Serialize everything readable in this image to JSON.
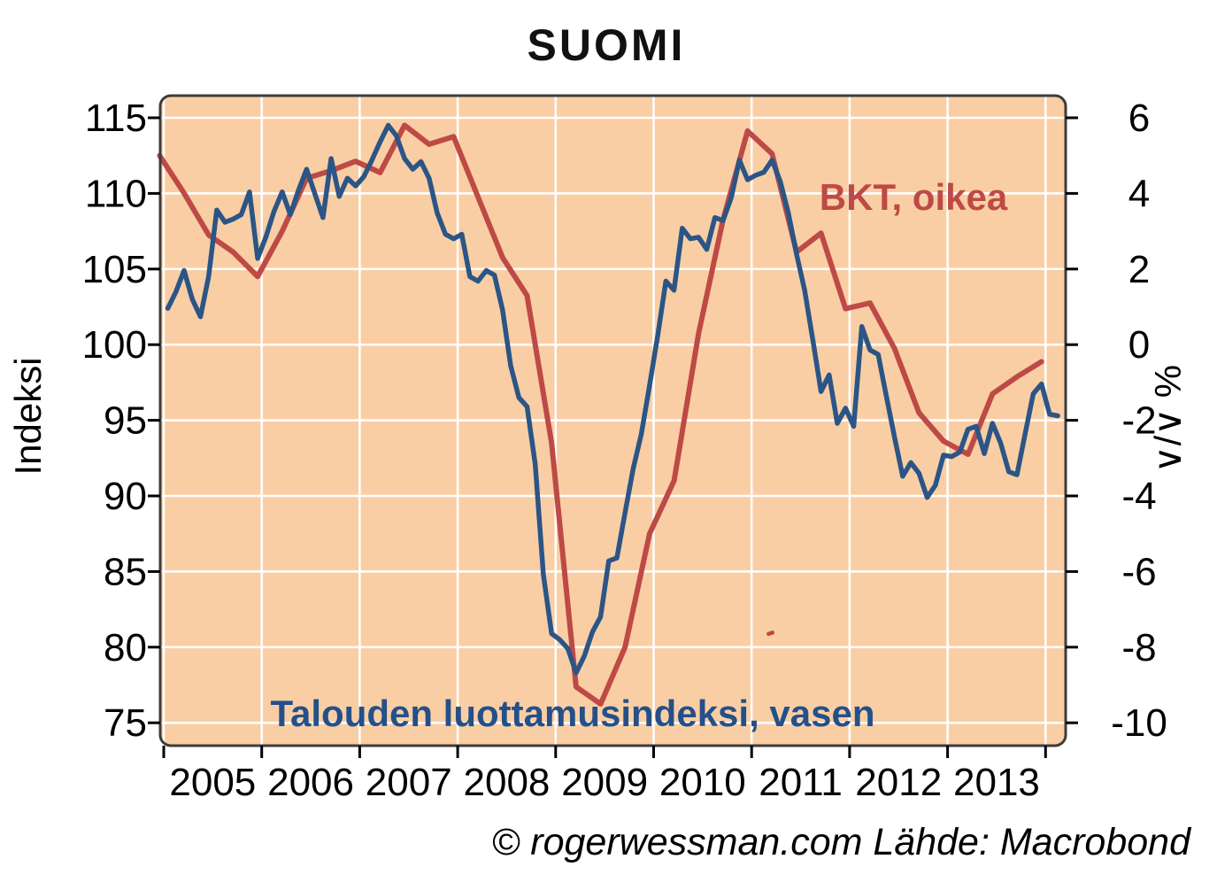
{
  "chart_data": {
    "type": "line",
    "title": "SUOMI",
    "footer": "© rogerwessman.com Lähde: Macrobond",
    "plot_background": "#facea4",
    "grid_color": "#ffffff",
    "border_color": "#3c3c3c",
    "left_axis": {
      "label": "Indeksi",
      "min": 75,
      "max": 115,
      "ticks": [
        115,
        110,
        105,
        100,
        95,
        90,
        85,
        80,
        75
      ]
    },
    "right_axis": {
      "label": "∨/∨ %",
      "min": -10,
      "max": 6,
      "ticks": [
        6,
        4,
        2,
        0,
        -2,
        -4,
        -6,
        -8,
        -10
      ]
    },
    "x_axis": {
      "year_labels": [
        "2005",
        "2006",
        "2007",
        "2008",
        "2009",
        "2010",
        "2011",
        "2012",
        "2013"
      ],
      "gridline_years": 10
    },
    "series": [
      {
        "label": "Talouden luottamusindeksi, vasen",
        "axis": "left",
        "frequency": "monthly",
        "start": "2005-01",
        "color": "#2b5586",
        "label_color": "#24508a",
        "stroke_width": 5.5,
        "values": [
          102.4,
          103.5,
          104.9,
          103.0,
          101.85,
          104.5,
          108.9,
          108.1,
          108.3,
          108.6,
          110.1,
          105.7,
          107.1,
          108.8,
          110.1,
          108.6,
          110.2,
          111.6,
          110.0,
          108.4,
          112.3,
          109.8,
          111.0,
          110.5,
          111.1,
          112.2,
          113.4,
          114.5,
          113.8,
          112.3,
          111.6,
          112.1,
          111.0,
          108.7,
          107.3,
          107.0,
          107.3,
          104.5,
          104.2,
          104.9,
          104.6,
          102.3,
          98.6,
          96.5,
          95.9,
          92.1,
          84.8,
          80.9,
          80.5,
          79.9,
          78.3,
          79.4,
          81.0,
          82.0,
          85.7,
          85.9,
          88.9,
          91.8,
          94.1,
          97.3,
          100.6,
          104.2,
          103.6,
          107.7,
          107.0,
          107.1,
          106.3,
          108.4,
          108.2,
          109.7,
          112.2,
          110.9,
          111.2,
          111.4,
          112.2,
          110.8,
          108.7,
          106.0,
          103.6,
          100.3,
          96.9,
          98.0,
          94.8,
          95.8,
          94.6,
          101.2,
          99.65,
          99.35,
          96.6,
          93.9,
          91.3,
          92.2,
          91.5,
          89.9,
          90.7,
          92.7,
          92.6,
          92.9,
          94.4,
          94.6,
          92.8,
          94.8,
          93.5,
          91.6,
          91.4,
          94.1,
          96.75,
          97.4,
          95.4,
          95.3
        ]
      },
      {
        "label": "BKT, oikea",
        "axis": "right",
        "frequency": "quarterly",
        "start": "2004-Q4",
        "color": "#bd4a47",
        "label_color": "#bd4a47",
        "stroke_width": 6,
        "values": [
          5.0,
          4.0,
          2.9,
          2.45,
          1.8,
          3.0,
          4.4,
          4.6,
          4.85,
          4.55,
          5.8,
          5.3,
          5.5,
          3.9,
          2.3,
          1.3,
          -2.6,
          -9.05,
          -9.5,
          -8.0,
          -5.0,
          -3.6,
          0.3,
          3.3,
          5.65,
          5.05,
          2.45,
          2.95,
          0.95,
          1.1,
          -0.1,
          -1.8,
          -2.55,
          -2.9,
          -1.3,
          -0.85,
          -0.45
        ]
      }
    ],
    "annotations": [
      {
        "text": "BKT, oikea"
      },
      {
        "text": "Talouden luottamusindeksi, vasen"
      }
    ],
    "stray_mark": {
      "x": 866,
      "y": 713,
      "color": "#bd4a47"
    }
  }
}
